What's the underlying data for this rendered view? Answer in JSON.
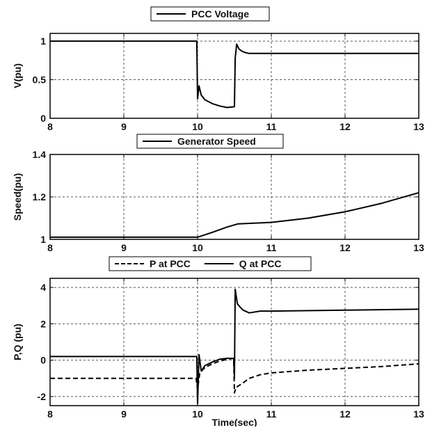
{
  "chart_data": [
    {
      "type": "line",
      "xlabel": "",
      "ylabel": "V(pu)",
      "xlim": [
        8,
        13
      ],
      "ylim": [
        0,
        1.1
      ],
      "xticks": [
        8,
        9,
        10,
        11,
        12,
        13
      ],
      "yticks": [
        0,
        0.5,
        1
      ],
      "ytick_labels": [
        "0",
        "0.5",
        "1"
      ],
      "grid": true,
      "legend": "top-center",
      "series": [
        {
          "name": "PCC Voltage",
          "style": "solid",
          "color": "#000000",
          "x": [
            8,
            9,
            9.99,
            10.0,
            10.02,
            10.05,
            10.1,
            10.2,
            10.3,
            10.4,
            10.5,
            10.51,
            10.53,
            10.56,
            10.6,
            10.65,
            10.7,
            10.8,
            11,
            12,
            13
          ],
          "y": [
            1.0,
            1.0,
            1.0,
            0.25,
            0.42,
            0.3,
            0.24,
            0.19,
            0.16,
            0.14,
            0.15,
            0.78,
            0.96,
            0.9,
            0.87,
            0.85,
            0.84,
            0.84,
            0.84,
            0.84,
            0.84
          ]
        }
      ]
    },
    {
      "type": "line",
      "xlabel": "",
      "ylabel": "Speed(pu)",
      "xlim": [
        8,
        13
      ],
      "ylim": [
        1.0,
        1.4
      ],
      "xticks": [
        8,
        9,
        10,
        11,
        12,
        13
      ],
      "yticks": [
        1,
        1.2,
        1.4
      ],
      "ytick_labels": [
        "1",
        "1.2",
        "1.4"
      ],
      "grid": true,
      "legend": "top-center",
      "series": [
        {
          "name": "Generator Speed",
          "style": "solid",
          "color": "#000000",
          "x": [
            8,
            9,
            10.0,
            10.2,
            10.4,
            10.55,
            11,
            11.5,
            12,
            12.5,
            13
          ],
          "y": [
            1.01,
            1.01,
            1.01,
            1.033,
            1.058,
            1.073,
            1.08,
            1.1,
            1.13,
            1.17,
            1.22
          ]
        }
      ]
    },
    {
      "type": "line",
      "xlabel": "Time(sec)",
      "ylabel": "P,Q (pu)",
      "xlim": [
        8,
        13
      ],
      "ylim": [
        -2.5,
        4.5
      ],
      "xticks": [
        8,
        9,
        10,
        11,
        12,
        13
      ],
      "yticks": [
        -2,
        0,
        2,
        4
      ],
      "ytick_labels": [
        "-2",
        "0",
        "2",
        "4"
      ],
      "grid": true,
      "legend": "top-center",
      "series": [
        {
          "name": "P at PCC",
          "style": "dashed",
          "color": "#000000",
          "x": [
            8,
            9,
            9.98,
            10.0,
            10.03,
            10.1,
            10.2,
            10.3,
            10.4,
            10.49,
            10.5,
            10.52,
            10.56,
            10.6,
            10.7,
            10.85,
            11,
            11.5,
            12,
            12.5,
            13
          ],
          "y": [
            -1.0,
            -1.0,
            -1.0,
            -1.6,
            -0.7,
            -0.4,
            -0.2,
            -0.05,
            0.05,
            0.1,
            -1.8,
            -1.5,
            -1.4,
            -1.3,
            -1.0,
            -0.8,
            -0.7,
            -0.55,
            -0.45,
            -0.35,
            -0.2
          ]
        },
        {
          "name": "Q at PCC",
          "style": "solid",
          "color": "#000000",
          "x": [
            8,
            9,
            9.99,
            10.0,
            10.02,
            10.05,
            10.1,
            10.2,
            10.3,
            10.4,
            10.49,
            10.5,
            10.51,
            10.54,
            10.58,
            10.62,
            10.7,
            10.85,
            11,
            12,
            13
          ],
          "y": [
            0.2,
            0.2,
            0.2,
            -2.4,
            0.3,
            -0.6,
            -0.3,
            -0.1,
            0.05,
            0.1,
            0.1,
            -1.0,
            3.9,
            3.1,
            2.9,
            2.75,
            2.6,
            2.7,
            2.7,
            2.75,
            2.8
          ]
        }
      ]
    }
  ]
}
